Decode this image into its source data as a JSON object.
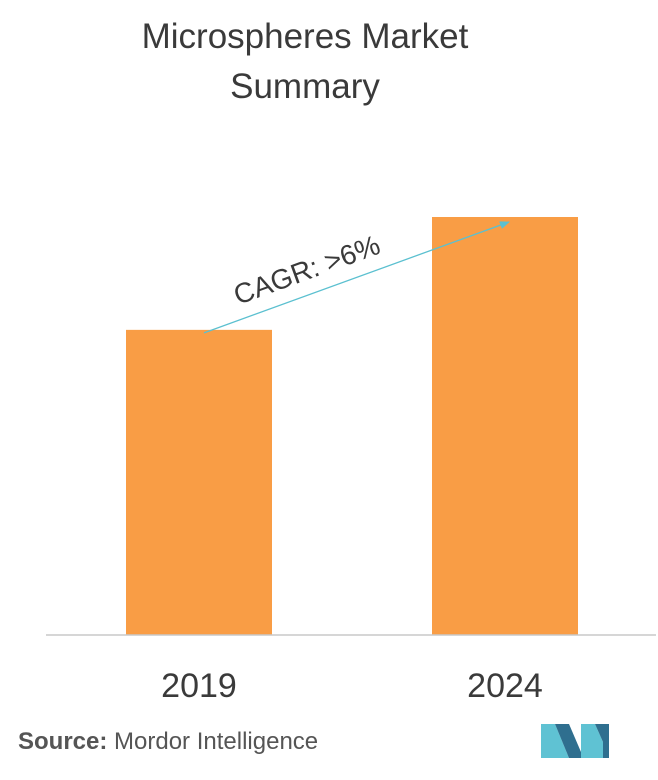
{
  "title_lines": [
    "Microspheres Market",
    "Summary"
  ],
  "source": {
    "label": "Source:",
    "text": "Mordor Intelligence"
  },
  "colors": {
    "bar": "#F99D45",
    "arrow": "#5BC0D0",
    "axis": "#C8C8C8",
    "text": "#3A3A3A",
    "logo_dark": "#2F6F8F",
    "logo_light": "#5FC2D3"
  },
  "logo": {
    "icon": "mordor-intelligence-logo"
  },
  "chart_data": {
    "type": "bar",
    "title": "Microspheres Market Summary",
    "categories": [
      "2019",
      "2024"
    ],
    "values": [
      73,
      100
    ],
    "ylim": [
      0,
      100
    ],
    "grid": false,
    "legend": "none",
    "annotation": {
      "text": "CAGR: >6%",
      "from": "2019",
      "to": "2024"
    }
  }
}
